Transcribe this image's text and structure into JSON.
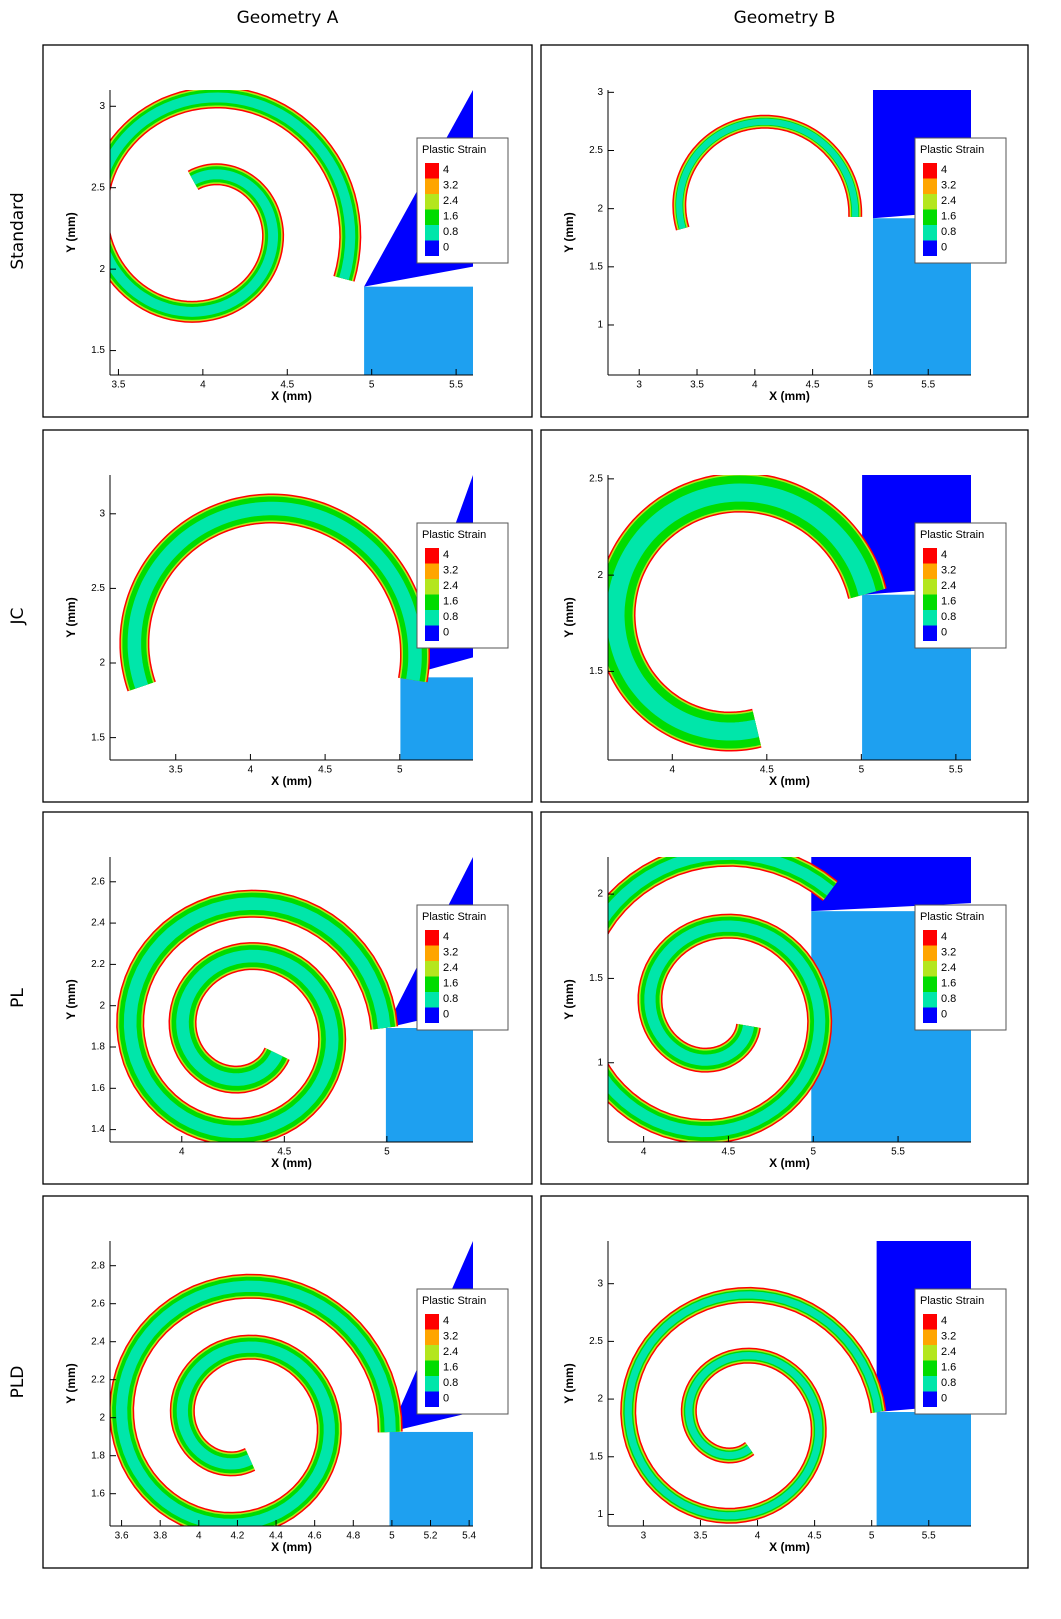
{
  "column_titles": [
    "Geometry A",
    "Geometry B"
  ],
  "row_labels": [
    "Standard",
    "JC",
    "PL",
    "PLD"
  ],
  "legend": {
    "title": "Plastic Strain",
    "levels": [
      4,
      3.2,
      2.4,
      1.6,
      0.8,
      0
    ],
    "colors": [
      "#ff0000",
      "#ffa500",
      "#b4e61e",
      "#00dc00",
      "#00e6aa",
      "#0000ff"
    ]
  },
  "chart_data": [
    {
      "type": "contour",
      "xlabel": "X (mm)",
      "ylabel": "Y (mm)",
      "xlim": [
        3.45,
        5.6
      ],
      "ylim": [
        1.35,
        3.1
      ],
      "xticks": [
        3.5,
        4,
        4.5,
        5,
        5.5
      ],
      "yticks": [
        1.5,
        2,
        2.5,
        3
      ]
    },
    {
      "type": "contour",
      "xlabel": "X (mm)",
      "ylabel": "Y (mm)",
      "xlim": [
        2.73,
        5.87
      ],
      "ylim": [
        0.57,
        3.02
      ],
      "xticks": [
        3,
        3.5,
        4,
        4.5,
        5,
        5.5
      ],
      "yticks": [
        1,
        1.5,
        2,
        2.5,
        3
      ]
    },
    {
      "type": "contour",
      "xlabel": "X (mm)",
      "ylabel": "Y (mm)",
      "xlim": [
        3.06,
        5.49
      ],
      "ylim": [
        1.35,
        3.26
      ],
      "xticks": [
        3.5,
        4,
        4.5,
        5
      ],
      "yticks": [
        1.5,
        2,
        2.5,
        3
      ]
    },
    {
      "type": "contour",
      "xlabel": "X (mm)",
      "ylabel": "Y (mm)",
      "xlim": [
        3.66,
        5.58
      ],
      "ylim": [
        1.04,
        2.52
      ],
      "xticks": [
        4,
        4.5,
        5,
        5.5
      ],
      "yticks": [
        1.5,
        2,
        2.5
      ]
    },
    {
      "type": "contour",
      "xlabel": "X (mm)",
      "ylabel": "Y (mm)",
      "xlim": [
        3.65,
        5.42
      ],
      "ylim": [
        1.34,
        2.72
      ],
      "xticks": [
        4,
        4.5,
        5
      ],
      "yticks": [
        1.4,
        1.6,
        1.8,
        2,
        2.2,
        2.4,
        2.6
      ]
    },
    {
      "type": "contour",
      "xlabel": "X (mm)",
      "ylabel": "Y (mm)",
      "xlim": [
        3.79,
        5.93
      ],
      "ylim": [
        0.53,
        2.22
      ],
      "xticks": [
        4,
        4.5,
        5,
        5.5
      ],
      "yticks": [
        1,
        1.5,
        2
      ]
    },
    {
      "type": "contour",
      "xlabel": "X (mm)",
      "ylabel": "Y (mm)",
      "xlim": [
        3.54,
        5.42
      ],
      "ylim": [
        1.43,
        2.93
      ],
      "xticks": [
        3.6,
        3.8,
        4,
        4.2,
        4.4,
        4.6,
        4.8,
        5,
        5.2,
        5.4
      ],
      "yticks": [
        1.6,
        1.8,
        2,
        2.2,
        2.4,
        2.6,
        2.8
      ]
    },
    {
      "type": "contour",
      "xlabel": "X (mm)",
      "ylabel": "Y (mm)",
      "xlim": [
        2.69,
        5.87
      ],
      "ylim": [
        0.9,
        3.37
      ],
      "xticks": [
        3,
        3.5,
        4,
        4.5,
        5,
        5.5
      ],
      "yticks": [
        1,
        1.5,
        2,
        2.5,
        3
      ]
    }
  ]
}
